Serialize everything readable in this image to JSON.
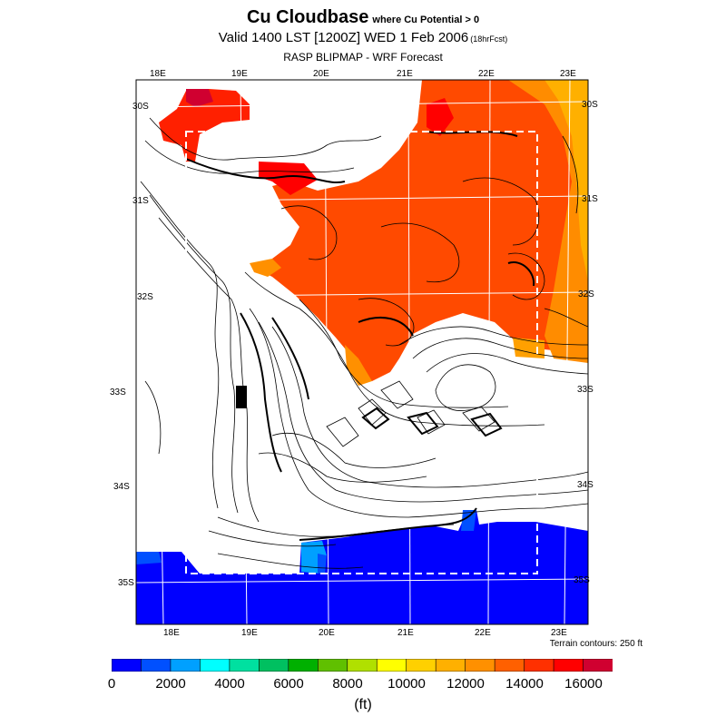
{
  "title": "Cu Cloudbase",
  "title_condition": "where Cu Potential > 0",
  "subtitle": "Valid 1400 LST [1200Z] WED 1 Feb 2006",
  "forecast_hour": "(18hrFcst)",
  "model": "RASP BLIPMAP - WRF Forecast",
  "terrain_note": "Terrain contours: 250 ft",
  "units": "(ft)",
  "top_lon_labels": [
    "18E",
    "19E",
    "20E",
    "21E",
    "22E",
    "23E"
  ],
  "bottom_lon_labels": [
    "18E",
    "19E",
    "20E",
    "21E",
    "22E",
    "23E"
  ],
  "left_lat_labels": [
    "30S",
    "31S",
    "32S",
    "33S",
    "34S",
    "35S"
  ],
  "right_lat_labels": [
    "30S",
    "31S",
    "32S",
    "33S",
    "34S",
    "35S"
  ],
  "colorbar": {
    "colors": [
      "#0000ff",
      "#0050ff",
      "#00a0ff",
      "#00ffff",
      "#00e0a0",
      "#00c060",
      "#00b000",
      "#60c000",
      "#b0e000",
      "#ffff00",
      "#ffd000",
      "#ffb000",
      "#ff9000",
      "#ff6000",
      "#ff3000",
      "#ff0000",
      "#d00030"
    ],
    "tick_labels": [
      "0",
      "2000",
      "4000",
      "6000",
      "8000",
      "10000",
      "12000",
      "14000",
      "16000"
    ]
  }
}
